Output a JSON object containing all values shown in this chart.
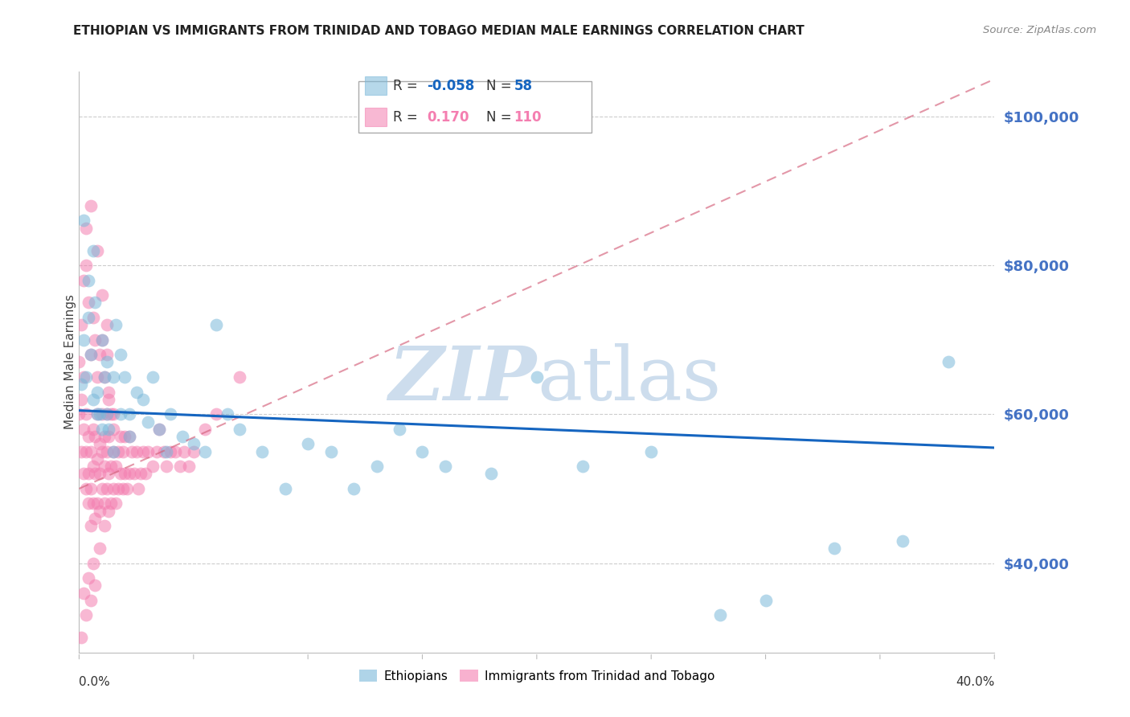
{
  "title": "ETHIOPIAN VS IMMIGRANTS FROM TRINIDAD AND TOBAGO MEDIAN MALE EARNINGS CORRELATION CHART",
  "source": "Source: ZipAtlas.com",
  "ylabel": "Median Male Earnings",
  "y_ticks": [
    40000,
    60000,
    80000,
    100000
  ],
  "y_tick_labels": [
    "$40,000",
    "$60,000",
    "$80,000",
    "$100,000"
  ],
  "x_range": [
    0.0,
    0.4
  ],
  "y_range": [
    28000,
    106000
  ],
  "legend_r_blue": "-0.058",
  "legend_n_blue": "58",
  "legend_r_pink": "0.170",
  "legend_n_pink": "110",
  "blue_color": "#7ab8d9",
  "pink_color": "#f47eb0",
  "trendline_blue_color": "#1565c0",
  "trendline_pink_color": "#d4607a",
  "watermark_color": "#c5d8ea",
  "axis_label_color": "#4472c4",
  "grid_color": "#cccccc",
  "title_color": "#222222",
  "blue_trend_y0": 60500,
  "blue_trend_y1": 55500,
  "pink_trend_y0": 50000,
  "pink_trend_y1": 105000,
  "blue_scatter_x": [
    0.001,
    0.002,
    0.003,
    0.004,
    0.005,
    0.006,
    0.007,
    0.008,
    0.009,
    0.01,
    0.011,
    0.012,
    0.013,
    0.015,
    0.016,
    0.018,
    0.02,
    0.022,
    0.025,
    0.028,
    0.03,
    0.032,
    0.035,
    0.038,
    0.04,
    0.045,
    0.05,
    0.055,
    0.06,
    0.065,
    0.07,
    0.08,
    0.09,
    0.1,
    0.11,
    0.12,
    0.13,
    0.14,
    0.15,
    0.16,
    0.18,
    0.2,
    0.22,
    0.25,
    0.28,
    0.3,
    0.33,
    0.36,
    0.38,
    0.002,
    0.004,
    0.006,
    0.008,
    0.01,
    0.012,
    0.015,
    0.018,
    0.022
  ],
  "blue_scatter_y": [
    64000,
    70000,
    65000,
    73000,
    68000,
    62000,
    75000,
    63000,
    60000,
    58000,
    65000,
    60000,
    58000,
    55000,
    72000,
    68000,
    65000,
    60000,
    63000,
    62000,
    59000,
    65000,
    58000,
    55000,
    60000,
    57000,
    56000,
    55000,
    72000,
    60000,
    58000,
    55000,
    50000,
    56000,
    55000,
    50000,
    53000,
    58000,
    55000,
    53000,
    52000,
    65000,
    53000,
    55000,
    33000,
    35000,
    42000,
    43000,
    67000,
    86000,
    78000,
    82000,
    60000,
    70000,
    67000,
    65000,
    60000,
    57000
  ],
  "pink_scatter_x": [
    0.0,
    0.0,
    0.001,
    0.001,
    0.002,
    0.002,
    0.002,
    0.003,
    0.003,
    0.003,
    0.004,
    0.004,
    0.004,
    0.005,
    0.005,
    0.005,
    0.006,
    0.006,
    0.006,
    0.007,
    0.007,
    0.007,
    0.008,
    0.008,
    0.008,
    0.009,
    0.009,
    0.009,
    0.01,
    0.01,
    0.01,
    0.011,
    0.011,
    0.011,
    0.012,
    0.012,
    0.012,
    0.013,
    0.013,
    0.013,
    0.014,
    0.014,
    0.015,
    0.015,
    0.015,
    0.016,
    0.016,
    0.017,
    0.017,
    0.018,
    0.018,
    0.019,
    0.019,
    0.02,
    0.02,
    0.021,
    0.022,
    0.022,
    0.023,
    0.024,
    0.025,
    0.026,
    0.027,
    0.028,
    0.029,
    0.03,
    0.032,
    0.034,
    0.035,
    0.037,
    0.038,
    0.04,
    0.042,
    0.044,
    0.046,
    0.048,
    0.05,
    0.055,
    0.06,
    0.07,
    0.001,
    0.002,
    0.003,
    0.004,
    0.005,
    0.006,
    0.007,
    0.008,
    0.009,
    0.01,
    0.011,
    0.012,
    0.013,
    0.014,
    0.015,
    0.003,
    0.005,
    0.008,
    0.01,
    0.012,
    0.002,
    0.004,
    0.006,
    0.009,
    0.001,
    0.003,
    0.005,
    0.007,
    0.011,
    0.013
  ],
  "pink_scatter_y": [
    60000,
    67000,
    55000,
    62000,
    52000,
    58000,
    65000,
    50000,
    55000,
    60000,
    48000,
    52000,
    57000,
    45000,
    50000,
    55000,
    48000,
    53000,
    58000,
    46000,
    52000,
    57000,
    48000,
    54000,
    60000,
    47000,
    52000,
    56000,
    50000,
    55000,
    60000,
    48000,
    53000,
    57000,
    50000,
    55000,
    60000,
    52000,
    57000,
    62000,
    48000,
    53000,
    50000,
    55000,
    60000,
    48000,
    53000,
    50000,
    55000,
    52000,
    57000,
    50000,
    55000,
    52000,
    57000,
    50000,
    52000,
    57000,
    55000,
    52000,
    55000,
    50000,
    52000,
    55000,
    52000,
    55000,
    53000,
    55000,
    58000,
    55000,
    53000,
    55000,
    55000,
    53000,
    55000,
    53000,
    55000,
    58000,
    60000,
    65000,
    72000,
    78000,
    80000,
    75000,
    68000,
    73000,
    70000,
    65000,
    68000,
    70000,
    65000,
    68000,
    63000,
    60000,
    58000,
    85000,
    88000,
    82000,
    76000,
    72000,
    36000,
    38000,
    40000,
    42000,
    30000,
    33000,
    35000,
    37000,
    45000,
    47000
  ]
}
